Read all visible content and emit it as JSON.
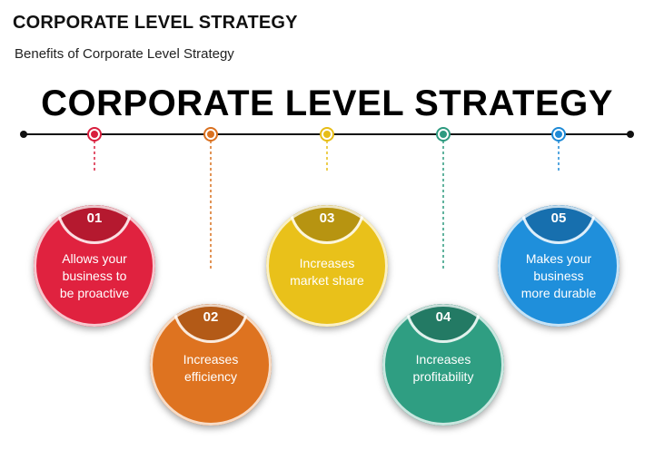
{
  "header": {
    "title": "CORPORATE LEVEL STRATEGY",
    "subtitle": "Benefits of Corporate Level Strategy"
  },
  "diagram": {
    "heading": "CORPORATE LEVEL STRATEGY",
    "items": [
      {
        "number": "01",
        "text": [
          "Allows your",
          "business to",
          "be proactive"
        ],
        "color": "#e0223f",
        "cap_color": "#b5192f",
        "dot_color": "#d81e3d"
      },
      {
        "number": "02",
        "text": [
          "Increases",
          "efficiency"
        ],
        "color": "#de7320",
        "cap_color": "#b35a17",
        "dot_color": "#d9701f"
      },
      {
        "number": "03",
        "text": [
          "Increases",
          "market share"
        ],
        "color": "#e9c11a",
        "cap_color": "#b79411",
        "dot_color": "#e7bd16"
      },
      {
        "number": "04",
        "text": [
          "Increases",
          "profitability"
        ],
        "color": "#2f9e82",
        "cap_color": "#237a64",
        "dot_color": "#2d9a7f"
      },
      {
        "number": "05",
        "text": [
          "Makes your",
          "business",
          "more durable"
        ],
        "color": "#1f8fdb",
        "cap_color": "#176fae",
        "dot_color": "#1e8ad6"
      }
    ]
  }
}
